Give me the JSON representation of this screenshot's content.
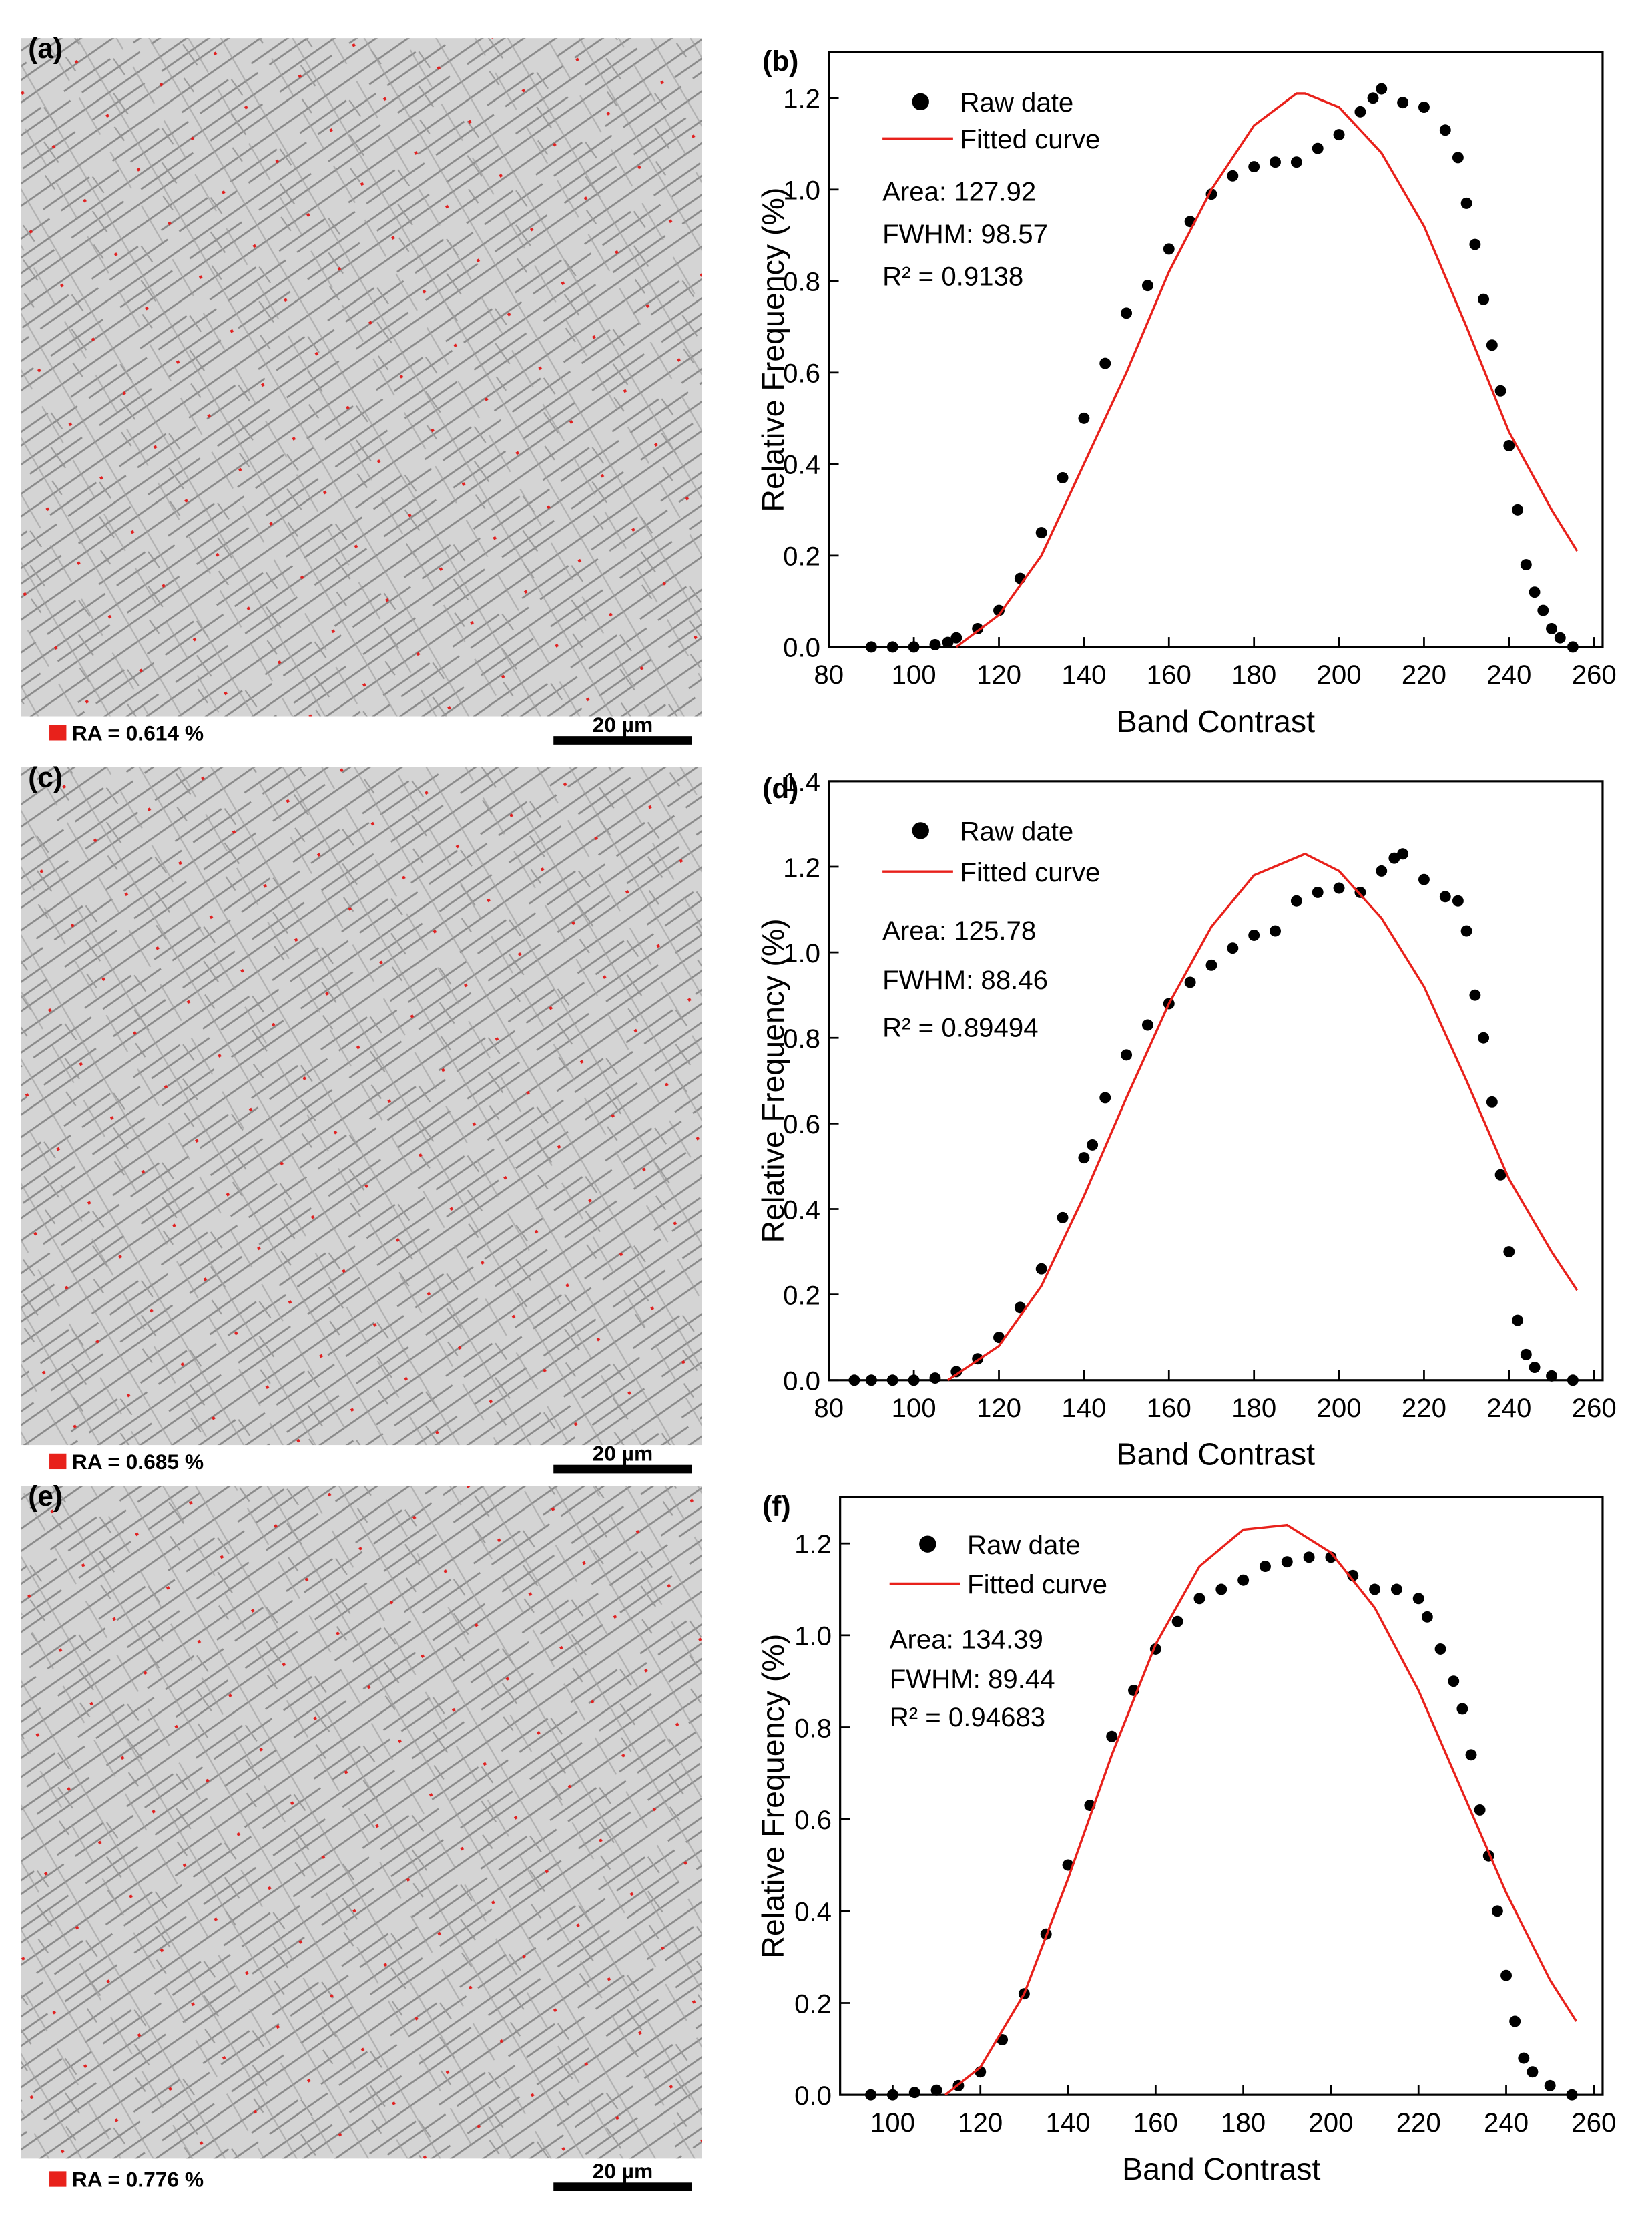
{
  "panels": [
    {
      "label": "(a)",
      "ra_text": "RA = 0.614 %",
      "scale_text": "20 µm"
    },
    {
      "label": "(c)",
      "ra_text": "RA = 0.685 %",
      "scale_text": "20 µm"
    },
    {
      "label": "(e)",
      "ra_text": "RA = 0.776 %",
      "scale_text": "20 µm"
    }
  ],
  "chart_data": [
    {
      "type": "scatter",
      "label": "(b)",
      "xlabel": "Band Contrast",
      "ylabel": "Relative Frequency (%)",
      "xlim": [
        80,
        262
      ],
      "ylim": [
        0,
        1.3
      ],
      "xticks": [
        80,
        100,
        120,
        140,
        160,
        180,
        200,
        220,
        240,
        260
      ],
      "yticks": [
        {
          "value": 0,
          "label": "0.0"
        },
        0.2,
        0.4,
        0.6,
        0.8,
        {
          "value": 1,
          "label": "1.0"
        },
        1.2
      ],
      "annotations": [
        "Area: 127.92",
        "FWHM: 98.57",
        "R² = 0.9138"
      ],
      "series": [
        {
          "name": "Raw date",
          "color": "#000000",
          "type": "scatter",
          "x": [
            90,
            95,
            100,
            105,
            108,
            110,
            115,
            120,
            125,
            130,
            135,
            140,
            145,
            150,
            155,
            160,
            165,
            170,
            175,
            180,
            185,
            190,
            195,
            200,
            205,
            208,
            210,
            215,
            220,
            225,
            228,
            230,
            232,
            234,
            236,
            238,
            240,
            242,
            244,
            246,
            248,
            250,
            252,
            255
          ],
          "values": [
            0,
            0,
            0,
            0.005,
            0.01,
            0.02,
            0.04,
            0.08,
            0.15,
            0.25,
            0.37,
            0.5,
            0.62,
            0.73,
            0.79,
            0.87,
            0.93,
            0.99,
            1.03,
            1.05,
            1.06,
            1.06,
            1.09,
            1.12,
            1.17,
            1.2,
            1.22,
            1.19,
            1.18,
            1.13,
            1.07,
            0.97,
            0.88,
            0.76,
            0.66,
            0.56,
            0.44,
            0.3,
            0.18,
            0.12,
            0.08,
            0.04,
            0.02,
            0
          ]
        },
        {
          "name": "Fitted curve",
          "color": "#e8211b",
          "type": "line",
          "x": [
            110,
            120,
            130,
            140,
            150,
            160,
            170,
            180,
            190,
            192,
            200,
            210,
            220,
            230,
            240,
            250,
            256
          ],
          "values": [
            0,
            0.07,
            0.2,
            0.4,
            0.6,
            0.82,
            1,
            1.14,
            1.21,
            1.21,
            1.18,
            1.08,
            0.92,
            0.7,
            0.47,
            0.3,
            0.21
          ]
        }
      ]
    },
    {
      "type": "scatter",
      "label": "(d)",
      "xlabel": "Band Contrast",
      "ylabel": "Relative Frequency (%)",
      "xlim": [
        80,
        262
      ],
      "ylim": [
        0,
        1.4
      ],
      "xticks": [
        80,
        100,
        120,
        140,
        160,
        180,
        200,
        220,
        240,
        260
      ],
      "yticks": [
        {
          "value": 0,
          "label": "0.0"
        },
        0.2,
        0.4,
        0.6,
        0.8,
        {
          "value": 1,
          "label": "1.0"
        },
        1.2,
        1.4
      ],
      "annotations": [
        "Area: 125.78",
        "FWHM: 88.46",
        "R² = 0.89494"
      ],
      "series": [
        {
          "name": "Raw date",
          "color": "#000000",
          "type": "scatter",
          "x": [
            86,
            90,
            95,
            100,
            105,
            110,
            115,
            120,
            125,
            130,
            135,
            140,
            142,
            145,
            150,
            155,
            160,
            165,
            170,
            175,
            180,
            185,
            190,
            195,
            200,
            205,
            210,
            213,
            215,
            220,
            225,
            228,
            230,
            232,
            234,
            236,
            238,
            240,
            242,
            244,
            246,
            250,
            255
          ],
          "values": [
            0,
            0,
            0,
            0,
            0.005,
            0.02,
            0.05,
            0.1,
            0.17,
            0.26,
            0.38,
            0.52,
            0.55,
            0.66,
            0.76,
            0.83,
            0.88,
            0.93,
            0.97,
            1.01,
            1.04,
            1.05,
            1.12,
            1.14,
            1.15,
            1.14,
            1.19,
            1.22,
            1.23,
            1.17,
            1.13,
            1.12,
            1.05,
            0.9,
            0.8,
            0.65,
            0.48,
            0.3,
            0.14,
            0.06,
            0.03,
            0.01,
            0
          ]
        },
        {
          "name": "Fitted curve",
          "color": "#e8211b",
          "type": "line",
          "x": [
            108,
            120,
            130,
            140,
            150,
            160,
            170,
            180,
            192,
            200,
            210,
            220,
            230,
            240,
            250,
            256
          ],
          "values": [
            0,
            0.08,
            0.22,
            0.43,
            0.66,
            0.88,
            1.06,
            1.18,
            1.23,
            1.19,
            1.08,
            0.92,
            0.7,
            0.47,
            0.3,
            0.21
          ]
        }
      ]
    },
    {
      "type": "scatter",
      "label": "(f)",
      "xlabel": "Band Contrast",
      "ylabel": "Relative Frequency (%)",
      "xlim": [
        88,
        262
      ],
      "ylim": [
        0,
        1.3
      ],
      "xticks": [
        100,
        120,
        140,
        160,
        180,
        200,
        220,
        240,
        260
      ],
      "yticks": [
        {
          "value": 0,
          "label": "0.0"
        },
        0.2,
        0.4,
        0.6,
        0.8,
        {
          "value": 1,
          "label": "1.0"
        },
        1.2
      ],
      "annotations": [
        "Area: 134.39",
        "FWHM: 89.44",
        "R² = 0.94683"
      ],
      "series": [
        {
          "name": "Raw date",
          "color": "#000000",
          "type": "scatter",
          "x": [
            95,
            100,
            105,
            110,
            115,
            120,
            125,
            130,
            135,
            140,
            145,
            150,
            155,
            160,
            165,
            170,
            175,
            180,
            185,
            190,
            195,
            200,
            205,
            210,
            215,
            220,
            222,
            225,
            228,
            230,
            232,
            234,
            236,
            238,
            240,
            242,
            244,
            246,
            250,
            255
          ],
          "values": [
            0,
            0,
            0.005,
            0.01,
            0.02,
            0.05,
            0.12,
            0.22,
            0.35,
            0.5,
            0.63,
            0.78,
            0.88,
            0.97,
            1.03,
            1.08,
            1.1,
            1.12,
            1.15,
            1.16,
            1.17,
            1.17,
            1.13,
            1.1,
            1.1,
            1.08,
            1.04,
            0.97,
            0.9,
            0.84,
            0.74,
            0.62,
            0.52,
            0.4,
            0.26,
            0.16,
            0.08,
            0.05,
            0.02,
            0
          ]
        },
        {
          "name": "Fitted curve",
          "color": "#e8211b",
          "type": "line",
          "x": [
            112,
            120,
            130,
            140,
            150,
            160,
            170,
            180,
            190,
            200,
            210,
            220,
            230,
            240,
            250,
            256
          ],
          "values": [
            0,
            0.06,
            0.22,
            0.47,
            0.74,
            0.98,
            1.15,
            1.23,
            1.24,
            1.18,
            1.06,
            0.88,
            0.66,
            0.44,
            0.25,
            0.16
          ]
        }
      ]
    }
  ]
}
